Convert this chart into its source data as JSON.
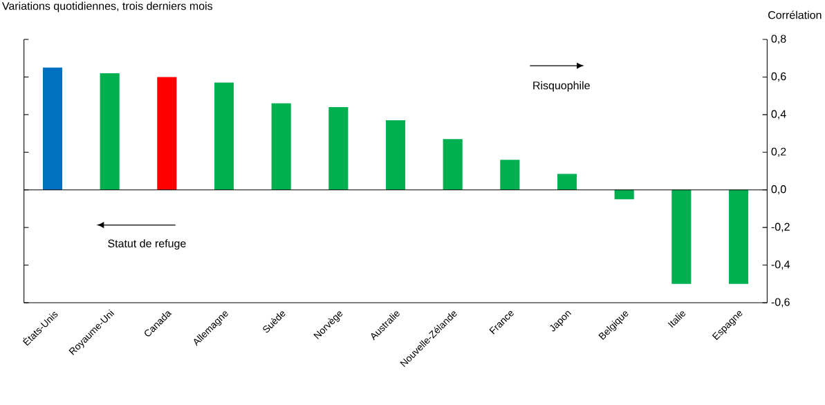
{
  "chart_data": {
    "type": "bar",
    "title": "Variations quotidiennes, trois derniers mois",
    "ylabel": "Corrélation",
    "categories": [
      "États-Unis",
      "Royaume-Uni",
      "Canada",
      "Allemagne",
      "Suède",
      "Norvège",
      "Australie",
      "Nouvelle-Zélande",
      "France",
      "Japon",
      "Belgique",
      "Italie",
      "Espagne"
    ],
    "values": [
      0.65,
      0.62,
      0.6,
      0.57,
      0.46,
      0.44,
      0.37,
      0.27,
      0.16,
      0.085,
      -0.05,
      -0.5,
      -0.5
    ],
    "colors": [
      "#0070c0",
      "#00b050",
      "#ff0000",
      "#00b050",
      "#00b050",
      "#00b050",
      "#00b050",
      "#00b050",
      "#00b050",
      "#00b050",
      "#00b050",
      "#00b050",
      "#00b050"
    ],
    "ylim": [
      -0.6,
      0.8
    ],
    "yticks": [
      {
        "value": -0.6,
        "label": "-0,6"
      },
      {
        "value": -0.4,
        "label": "-0,4"
      },
      {
        "value": -0.2,
        "label": "-0,2"
      },
      {
        "value": 0,
        "label": "0,0"
      },
      {
        "value": 0.2,
        "label": "0,2"
      },
      {
        "value": 0.4,
        "label": "0,4"
      },
      {
        "value": 0.6,
        "label": "0,6"
      },
      {
        "value": 0.8,
        "label": "0,8"
      }
    ],
    "annotations": [
      "Risquophile",
      "Statut de refuge"
    ]
  }
}
